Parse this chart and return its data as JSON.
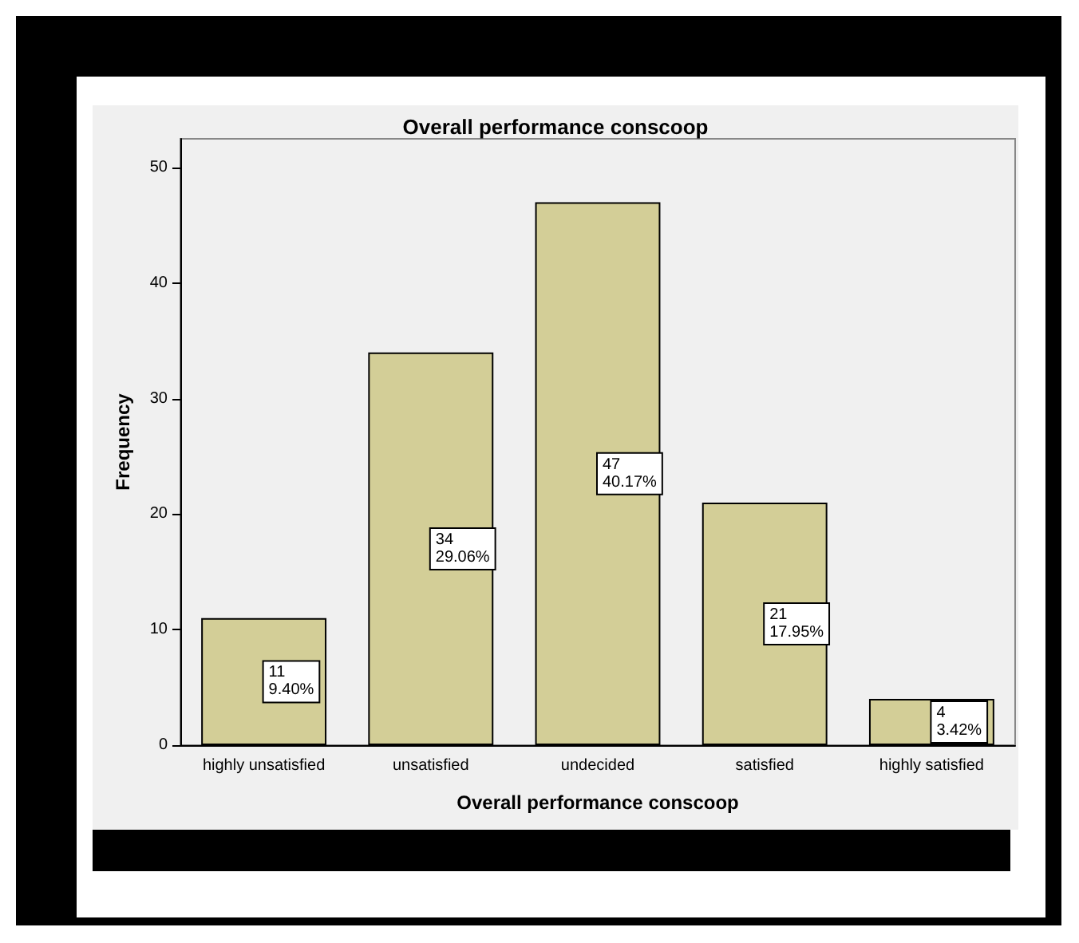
{
  "chart_data": {
    "type": "bar",
    "title": "Overall performance conscoop",
    "xlabel": "Overall performance conscoop",
    "ylabel": "Frequency",
    "categories": [
      "highly unsatisfied",
      "unsatisfied",
      "undecided",
      "satisfied",
      "highly satisfied"
    ],
    "values": [
      11,
      34,
      47,
      21,
      4
    ],
    "value_labels": [
      "11\n9.40%",
      "34\n29.06%",
      "47\n40.17%",
      "21\n17.95%",
      "4\n3.42%"
    ],
    "color": "#d3ce97",
    "ylim": [
      0,
      52.5
    ],
    "yticks": [
      0,
      10,
      20,
      30,
      40,
      50
    ],
    "grid": false
  }
}
